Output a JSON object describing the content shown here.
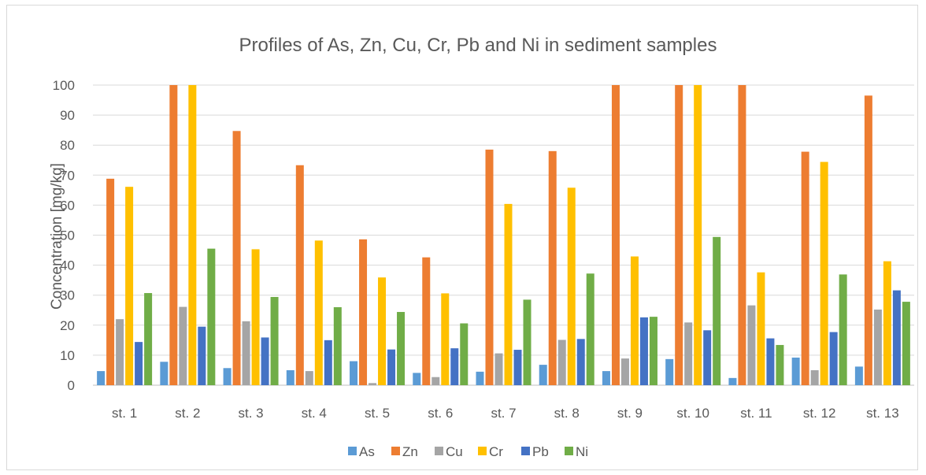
{
  "chart_data": {
    "type": "bar",
    "title": "Profiles of As, Zn, Cu, Cr, Pb and Ni in sediment samples",
    "xlabel": "",
    "ylabel": "Concentration [mg/kg]",
    "ylim": [
      0,
      100
    ],
    "yticks": [
      "0",
      "10",
      "20",
      "30",
      "40",
      "50",
      "60",
      "70",
      "80",
      "90",
      "100"
    ],
    "grid": true,
    "legend": "bottom",
    "categories": [
      "st. 1",
      "st. 2",
      "st. 3",
      "st. 4",
      "st. 5",
      "st. 6",
      "st. 7",
      "st. 8",
      "st. 9",
      "st. 10",
      "st. 11",
      "st. 12",
      "st. 13"
    ],
    "series": [
      {
        "name": "As",
        "color": "#5b9bd5",
        "values": [
          4.7,
          7.8,
          5.7,
          5.0,
          8.0,
          4.1,
          4.5,
          6.8,
          4.7,
          8.7,
          2.4,
          9.2,
          6.2
        ]
      },
      {
        "name": "Zn",
        "color": "#ed7d31",
        "values": [
          68.8,
          100,
          84.7,
          73.3,
          48.6,
          42.6,
          78.5,
          78.0,
          100,
          100,
          100,
          77.8,
          96.5
        ]
      },
      {
        "name": "Cu",
        "color": "#a5a5a5",
        "values": [
          22.0,
          26.1,
          21.3,
          4.7,
          0.7,
          2.7,
          10.6,
          15.1,
          8.9,
          20.9,
          26.6,
          5.0,
          25.2
        ]
      },
      {
        "name": "Cr",
        "color": "#ffc000",
        "values": [
          66.1,
          100,
          45.3,
          48.2,
          35.9,
          30.6,
          60.4,
          65.8,
          42.9,
          100,
          37.6,
          74.4,
          41.3
        ]
      },
      {
        "name": "Pb",
        "color": "#4472c4",
        "values": [
          14.4,
          19.5,
          15.9,
          15.0,
          11.9,
          12.3,
          11.8,
          15.4,
          22.6,
          18.3,
          15.6,
          17.7,
          31.6
        ]
      },
      {
        "name": "Ni",
        "color": "#70ad47",
        "values": [
          30.7,
          45.5,
          29.4,
          26.0,
          24.4,
          20.6,
          28.5,
          37.2,
          22.8,
          49.4,
          13.4,
          36.9,
          27.8
        ]
      }
    ]
  }
}
